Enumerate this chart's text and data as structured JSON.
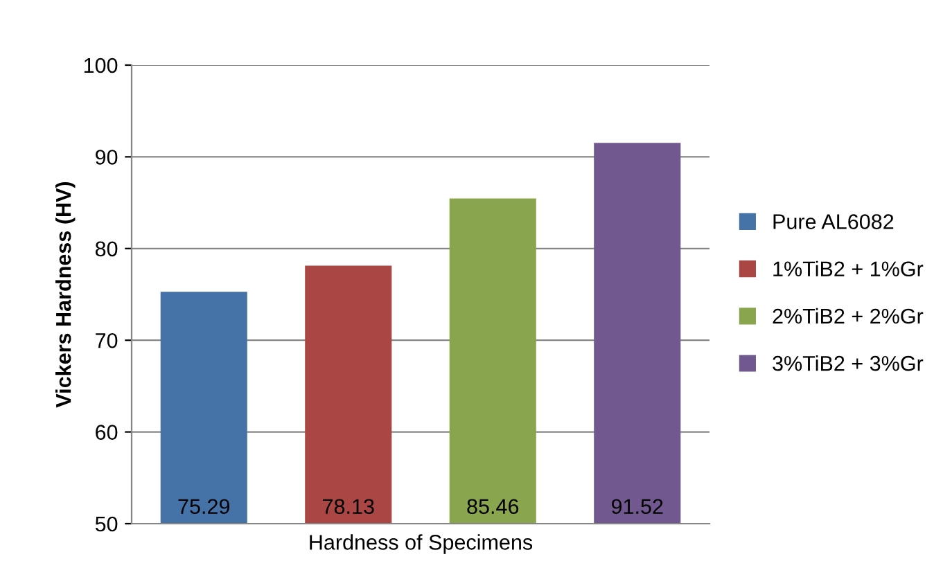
{
  "chart_data": {
    "type": "bar",
    "ylabel": "Vickers Hardness (HV)",
    "xlabel": "Hardness of Specimens",
    "categories": [
      null
    ],
    "series": [
      {
        "name": "Pure AL6082",
        "color": "#4572a7",
        "values": [
          75.29
        ]
      },
      {
        "name": "1%TiB2 + 1%Gr",
        "color": "#aa4643",
        "values": [
          78.13
        ]
      },
      {
        "name": "2%TiB2 + 2%Gr",
        "color": "#89a54e",
        "values": [
          85.46
        ]
      },
      {
        "name": "3%TiB2 + 3%Gr",
        "color": "#71588f",
        "values": [
          91.52
        ]
      }
    ],
    "ylim": [
      50,
      100
    ],
    "yticks": [
      50,
      60,
      70,
      80,
      90,
      100
    ],
    "grid": "y",
    "legend": "right",
    "data_labels": true
  }
}
